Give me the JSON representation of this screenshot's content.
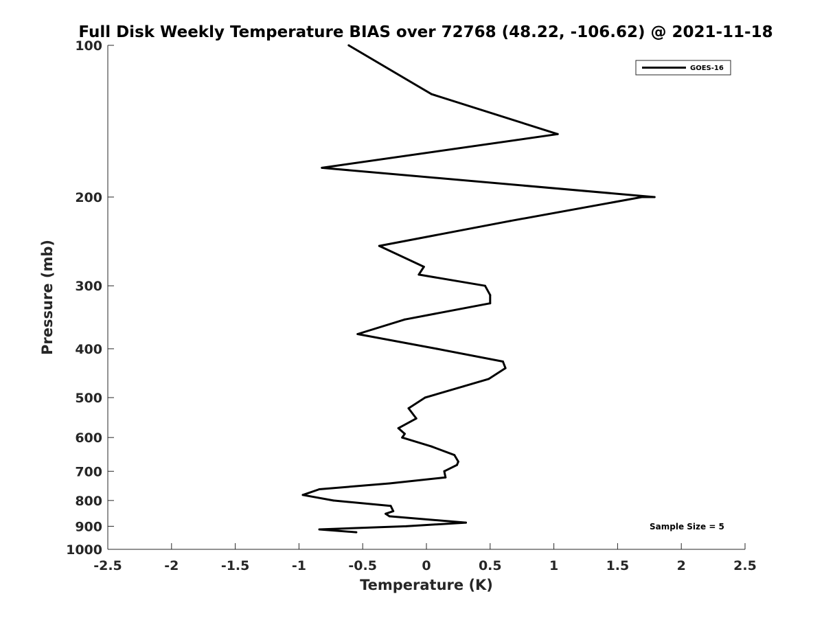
{
  "chart_data": {
    "type": "line",
    "title": "Full Disk Weekly Temperature BIAS over 72768 (48.22, -106.62) @ 2021-11-18",
    "xlabel": "Temperature (K)",
    "ylabel": "Pressure (mb)",
    "xlim": [
      -2.5,
      2.5
    ],
    "ylim": [
      100,
      1000
    ],
    "y_scale": "log",
    "y_reversed": true,
    "x_ticks": [
      -2.5,
      -2,
      -1.5,
      -1,
      -0.5,
      0,
      0.5,
      1,
      1.5,
      2,
      2.5
    ],
    "x_tick_labels": [
      "-2.5",
      "-2",
      "-1.5",
      "-1",
      "-0.5",
      "0",
      "0.5",
      "1",
      "1.5",
      "2",
      "2.5"
    ],
    "y_ticks": [
      100,
      200,
      300,
      400,
      500,
      600,
      700,
      800,
      900,
      1000
    ],
    "y_tick_labels": [
      "100",
      "200",
      "300",
      "400",
      "500",
      "600",
      "700",
      "800",
      "900",
      "1000"
    ],
    "grid": false,
    "legend_position": "top-right",
    "annotation": "Sample Size = 5",
    "series": [
      {
        "name": "GOES-16",
        "color": "#000000",
        "points": [
          {
            "x": -0.61,
            "y": 100
          },
          {
            "x": 0.04,
            "y": 125
          },
          {
            "x": 1.03,
            "y": 150
          },
          {
            "x": -0.82,
            "y": 175
          },
          {
            "x": 1.79,
            "y": 200
          },
          {
            "x": 1.69,
            "y": 200
          },
          {
            "x": 0.66,
            "y": 223
          },
          {
            "x": -0.37,
            "y": 250
          },
          {
            "x": -0.02,
            "y": 275
          },
          {
            "x": -0.06,
            "y": 285
          },
          {
            "x": 0.46,
            "y": 300
          },
          {
            "x": 0.5,
            "y": 313
          },
          {
            "x": 0.5,
            "y": 325
          },
          {
            "x": -0.17,
            "y": 350
          },
          {
            "x": -0.54,
            "y": 374
          },
          {
            "x": 0.08,
            "y": 400
          },
          {
            "x": 0.6,
            "y": 424
          },
          {
            "x": 0.62,
            "y": 437
          },
          {
            "x": 0.49,
            "y": 459
          },
          {
            "x": 0.29,
            "y": 475
          },
          {
            "x": -0.01,
            "y": 500
          },
          {
            "x": -0.14,
            "y": 525
          },
          {
            "x": -0.08,
            "y": 550
          },
          {
            "x": -0.22,
            "y": 575
          },
          {
            "x": -0.17,
            "y": 590
          },
          {
            "x": -0.19,
            "y": 600
          },
          {
            "x": 0.04,
            "y": 625
          },
          {
            "x": 0.22,
            "y": 650
          },
          {
            "x": 0.25,
            "y": 670
          },
          {
            "x": 0.24,
            "y": 680
          },
          {
            "x": 0.14,
            "y": 700
          },
          {
            "x": 0.15,
            "y": 720
          },
          {
            "x": -0.29,
            "y": 740
          },
          {
            "x": -0.84,
            "y": 760
          },
          {
            "x": -0.97,
            "y": 780
          },
          {
            "x": -0.73,
            "y": 800
          },
          {
            "x": -0.28,
            "y": 820
          },
          {
            "x": -0.26,
            "y": 840
          },
          {
            "x": -0.32,
            "y": 850
          },
          {
            "x": -0.29,
            "y": 860
          },
          {
            "x": 0.31,
            "y": 885
          },
          {
            "x": -0.16,
            "y": 900
          },
          {
            "x": -0.84,
            "y": 913
          },
          {
            "x": -0.55,
            "y": 925
          }
        ]
      }
    ]
  }
}
